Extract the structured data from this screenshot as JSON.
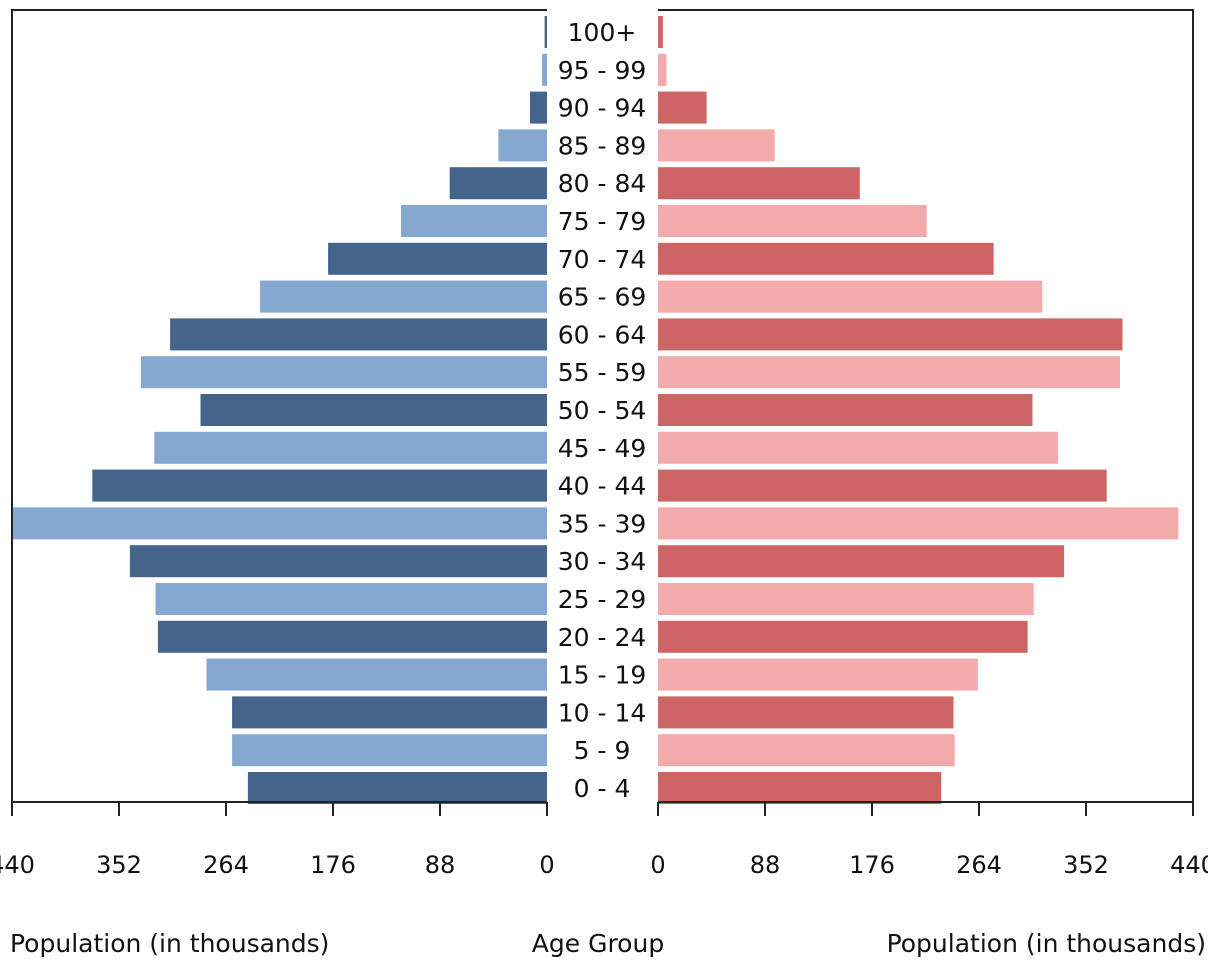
{
  "chart_data": {
    "type": "bar",
    "subtype": "population-pyramid",
    "categories": [
      "0 - 4",
      "5 - 9",
      "10 - 14",
      "15 - 19",
      "20 - 24",
      "25 - 29",
      "30 - 34",
      "35 - 39",
      "40 - 44",
      "45 - 49",
      "50 - 54",
      "55 - 59",
      "60 - 64",
      "65 - 69",
      "70 - 74",
      "75 - 79",
      "80 - 84",
      "85 - 89",
      "90 - 94",
      "95 - 99",
      "100+"
    ],
    "series": [
      {
        "side": "left",
        "colors": [
          "#44648c",
          "#84a8d0"
        ],
        "values": [
          246,
          259,
          259,
          280,
          320,
          322,
          343,
          440,
          374,
          323,
          285,
          334,
          310,
          236,
          180,
          120,
          80,
          40,
          14,
          4,
          2
        ]
      },
      {
        "side": "right",
        "colors": [
          "#cd6565",
          "#f2aaaa"
        ],
        "values": [
          233,
          244,
          243,
          263,
          304,
          309,
          334,
          428,
          369,
          329,
          308,
          380,
          382,
          316,
          276,
          221,
          166,
          96,
          40,
          7,
          4
        ]
      }
    ],
    "x_ticks": [
      440,
      352,
      264,
      176,
      88,
      0
    ],
    "xlim": [
      0,
      440
    ],
    "left_xlabel": "Population (in thousands)",
    "center_label": "Age Group",
    "right_xlabel": "Population (in thousands)",
    "grid": false
  }
}
